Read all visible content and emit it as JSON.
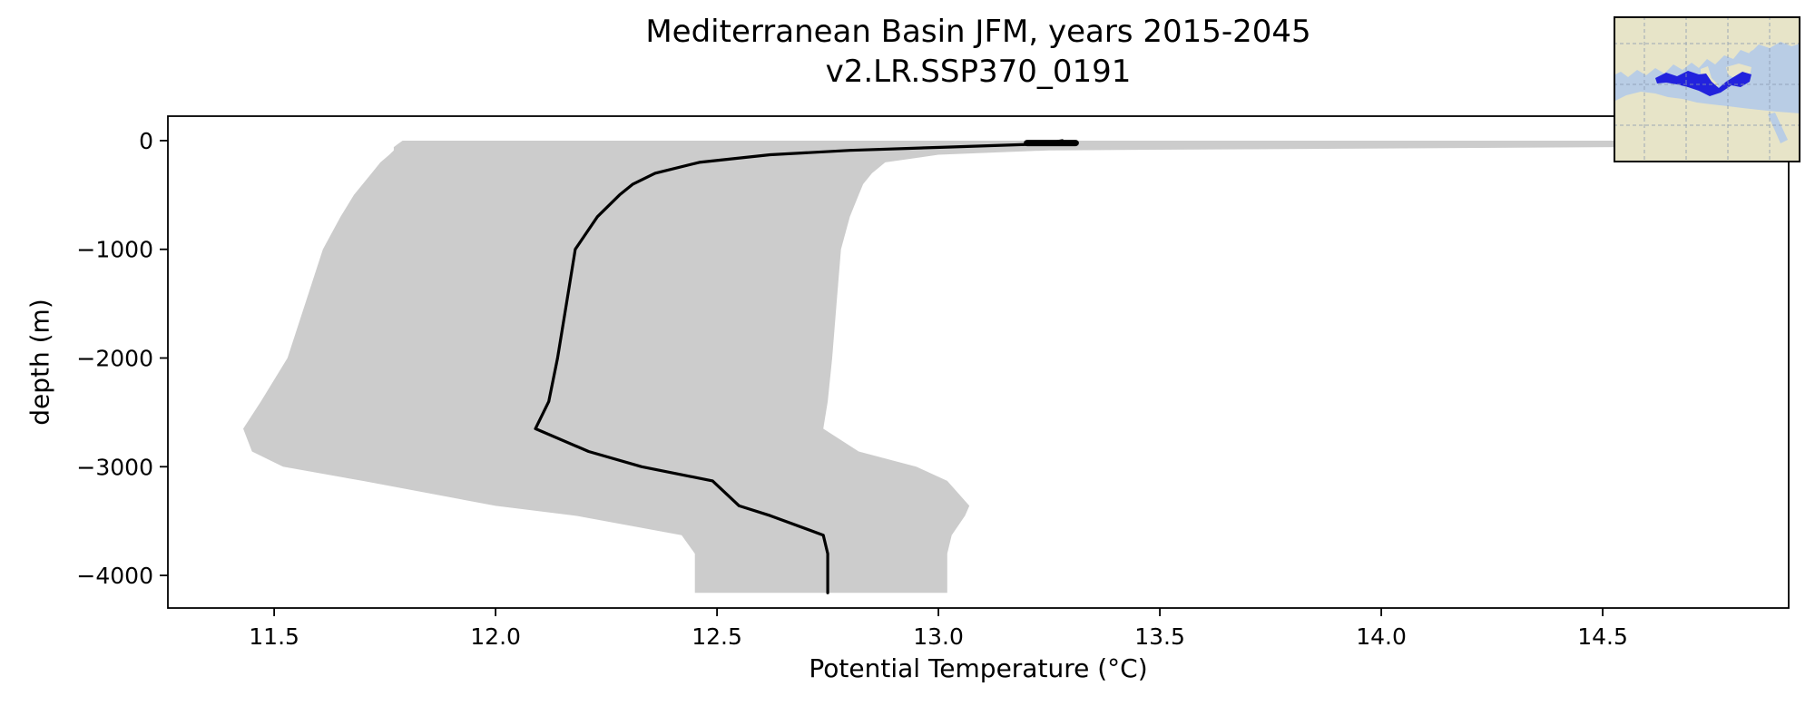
{
  "chart_data": {
    "type": "line",
    "title": "Mediterranean Basin JFM, years 2015-2045",
    "subtitle": "v2.LR.SSP370_0191",
    "xlabel": "Potential Temperature (°C)",
    "ylabel": "depth (m)",
    "xlim": [
      11.26,
      14.92
    ],
    "ylim": [
      225,
      -4300
    ],
    "xticks": [
      11.5,
      12.0,
      12.5,
      13.0,
      13.5,
      14.0,
      14.5
    ],
    "xtick_labels": [
      "11.5",
      "12.0",
      "12.5",
      "13.0",
      "13.5",
      "14.0",
      "14.5"
    ],
    "yticks": [
      0,
      -1000,
      -2000,
      -3000,
      -4000
    ],
    "ytick_labels": [
      "0",
      "−1000",
      "−2000",
      "−3000",
      "−4000"
    ],
    "grid": false,
    "legend": "none",
    "band_color": "#cccccc",
    "line_color": "#000000",
    "depths": [
      0,
      -30,
      -60,
      -90,
      -130,
      -200,
      -300,
      -400,
      -500,
      -700,
      -1000,
      -1500,
      -2000,
      -2400,
      -2650,
      -2860,
      -3000,
      -3130,
      -3360,
      -3450,
      -3630,
      -3800,
      -4000,
      -4160
    ],
    "series": [
      {
        "name": "mean",
        "role": "ensemble mean profile (black line)",
        "temp": [
          13.28,
          13.24,
          13.02,
          12.8,
          12.62,
          12.46,
          12.36,
          12.31,
          12.28,
          12.23,
          12.18,
          12.16,
          12.14,
          12.12,
          12.09,
          12.21,
          12.33,
          12.49,
          12.55,
          12.62,
          12.74,
          12.75,
          12.75,
          12.75
        ]
      },
      {
        "name": "min",
        "role": "envelope lower bound (gray band left edge)",
        "temp": [
          11.79,
          11.78,
          11.77,
          11.77,
          11.76,
          11.74,
          11.72,
          11.7,
          11.68,
          11.65,
          11.61,
          11.57,
          11.53,
          11.47,
          11.43,
          11.45,
          11.52,
          11.7,
          12.0,
          12.18,
          12.42,
          12.45,
          12.45,
          12.45
        ]
      },
      {
        "name": "max",
        "role": "envelope upper bound (gray band right edge)",
        "temp": [
          14.9,
          14.9,
          14.55,
          13.25,
          13.0,
          12.88,
          12.85,
          12.83,
          12.82,
          12.8,
          12.78,
          12.77,
          12.76,
          12.75,
          12.74,
          12.82,
          12.95,
          13.02,
          13.07,
          13.06,
          13.03,
          13.02,
          13.02,
          13.02
        ]
      }
    ],
    "surface_marker": {
      "temp_start": 13.2,
      "temp_end": 13.31,
      "depth": -22
    }
  },
  "inset_map": {
    "highlighted_region": "Mediterranean Sea",
    "colors": {
      "ocean": "#b9cde5",
      "land": "#e7e4c8",
      "highlight": "#2222dd",
      "grid": "#8b9bb0",
      "border": "#000000"
    }
  }
}
